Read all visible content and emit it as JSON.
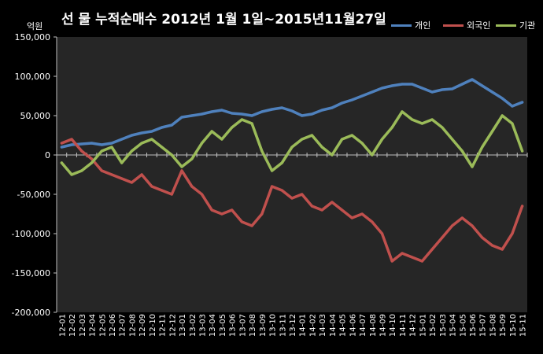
{
  "chart_data": {
    "type": "line",
    "title": "선 물 누적순매수 2012년 1월 1일~2015년11월27일",
    "ylabel": "억원",
    "ylim": [
      -200000,
      150000
    ],
    "yticks": [
      150000,
      100000,
      50000,
      0,
      -50000,
      -100000,
      -150000,
      -200000
    ],
    "ytick_labels": [
      "150,000",
      "100,000",
      "50,000",
      "0",
      "-50,000",
      "-100,000",
      "-150,000",
      "-200,000"
    ],
    "categories": [
      "12-01",
      "12-02",
      "12-03",
      "12-04",
      "12-05",
      "12-06",
      "12-07",
      "12-08",
      "12-09",
      "12-10",
      "12-11",
      "12-12",
      "13-01",
      "13-02",
      "13-03",
      "13-04",
      "13-05",
      "13-06",
      "13-07",
      "13-08",
      "13-09",
      "13-10",
      "13-11",
      "13-12",
      "14-01",
      "14-02",
      "14-03",
      "14-04",
      "14-05",
      "14-06",
      "14-07",
      "14-08",
      "14-09",
      "14-10",
      "14-11",
      "14-12",
      "15-01",
      "15-02",
      "15-03",
      "15-04",
      "15-05",
      "15-06",
      "15-07",
      "15-08",
      "15-09",
      "15-10",
      "15-11"
    ],
    "grid": false,
    "legend_position": "top-right",
    "series": [
      {
        "name": "개인",
        "color": "#4F81BD",
        "values": [
          10000,
          13000,
          14000,
          15000,
          13000,
          15000,
          20000,
          25000,
          28000,
          30000,
          35000,
          38000,
          48000,
          50000,
          52000,
          55000,
          57000,
          53000,
          52000,
          50000,
          55000,
          58000,
          60000,
          56000,
          50000,
          52000,
          57000,
          60000,
          66000,
          70000,
          75000,
          80000,
          85000,
          88000,
          90000,
          90000,
          85000,
          80000,
          83000,
          84000,
          90000,
          96000,
          88000,
          80000,
          72000,
          62000,
          67000
        ]
      },
      {
        "name": "외국인",
        "color": "#C0504D",
        "values": [
          15000,
          20000,
          5000,
          -5000,
          -20000,
          -25000,
          -30000,
          -35000,
          -25000,
          -40000,
          -45000,
          -50000,
          -20000,
          -40000,
          -50000,
          -70000,
          -75000,
          -70000,
          -85000,
          -90000,
          -75000,
          -40000,
          -45000,
          -55000,
          -50000,
          -65000,
          -70000,
          -60000,
          -70000,
          -80000,
          -75000,
          -85000,
          -100000,
          -135000,
          -125000,
          -130000,
          -135000,
          -120000,
          -105000,
          -90000,
          -80000,
          -90000,
          -105000,
          -115000,
          -120000,
          -100000,
          -65000
        ]
      },
      {
        "name": "기관",
        "color": "#9BBB59",
        "values": [
          -10000,
          -25000,
          -20000,
          -10000,
          5000,
          10000,
          -10000,
          5000,
          15000,
          20000,
          10000,
          0,
          -15000,
          -5000,
          15000,
          30000,
          20000,
          35000,
          45000,
          40000,
          5000,
          -20000,
          -10000,
          10000,
          20000,
          25000,
          10000,
          0,
          20000,
          25000,
          15000,
          0,
          20000,
          35000,
          55000,
          45000,
          40000,
          45000,
          35000,
          20000,
          5000,
          -15000,
          10000,
          30000,
          50000,
          40000,
          5000
        ]
      }
    ]
  }
}
